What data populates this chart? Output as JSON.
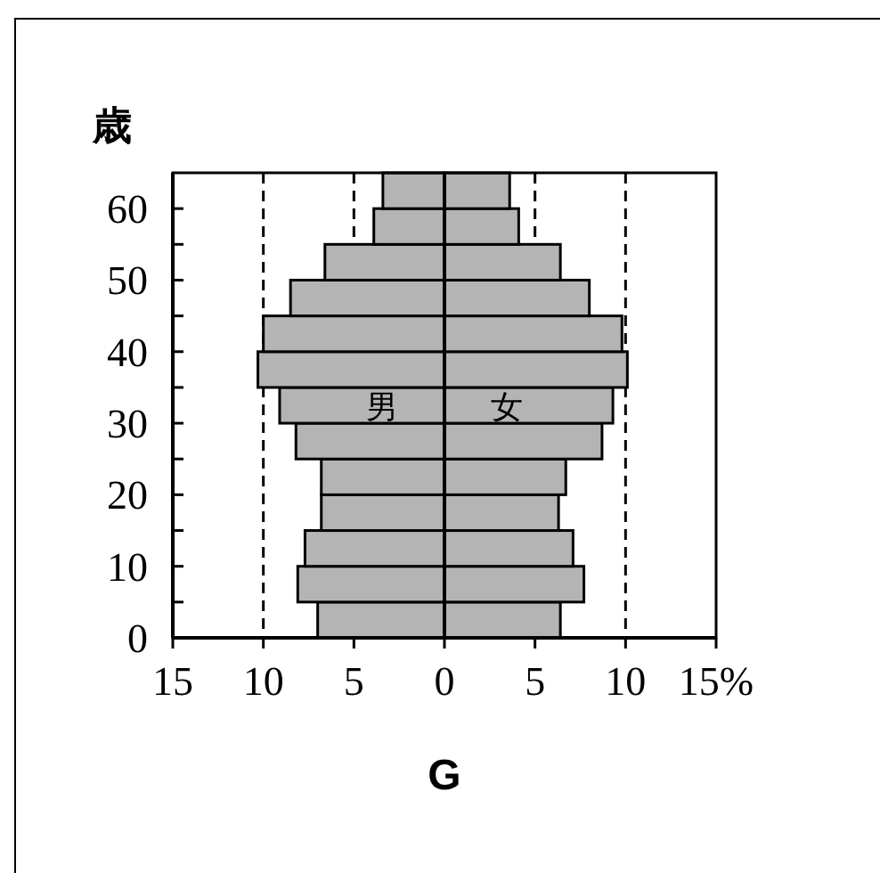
{
  "chart_data": {
    "type": "bar",
    "orientation": "horizontal",
    "ylabel": "歳",
    "xlabel": "G",
    "x": [
      2.5,
      7.5,
      12.5,
      17.5,
      22.5,
      27.5,
      32.5,
      37.5,
      42.5,
      47.5,
      52.5,
      57.5,
      62.5
    ],
    "series": [
      {
        "name": "男",
        "color": "#b4b4b4",
        "values": [
          -7.0,
          -8.1,
          -7.7,
          -6.8,
          -6.8,
          -8.2,
          -9.1,
          -10.3,
          -10.0,
          -8.5,
          -6.6,
          -3.9,
          -3.4
        ]
      },
      {
        "name": "女",
        "color": "#b4b4b4",
        "values": [
          6.4,
          7.7,
          7.1,
          6.3,
          6.7,
          8.7,
          9.3,
          10.1,
          9.8,
          8.0,
          6.4,
          4.1,
          3.6
        ]
      }
    ],
    "xlim": [
      -15,
      15
    ],
    "xticks": [
      {
        "value": -15,
        "label": "15"
      },
      {
        "value": -10,
        "label": "10"
      },
      {
        "value": -5,
        "label": "5"
      },
      0,
      5,
      10,
      {
        "value": 15,
        "label": "15%"
      }
    ],
    "ylim": [
      0,
      65
    ],
    "yticks": [
      0,
      {
        "value": 5,
        "label": null
      },
      10,
      {
        "value": 15,
        "label": null
      },
      20,
      {
        "value": 25,
        "label": null
      },
      30,
      {
        "value": 35,
        "label": null
      },
      40,
      {
        "value": 45,
        "label": null
      },
      50,
      {
        "value": 55,
        "label": null
      },
      60
    ],
    "ref_lines": [
      {
        "axis": "x",
        "value": -10,
        "line_style": "dashed"
      },
      {
        "axis": "x",
        "value": -5,
        "line_style": "dashed"
      },
      {
        "axis": "x",
        "value": 5,
        "line_style": "dashed"
      },
      {
        "axis": "x",
        "value": 10,
        "line_style": "dashed"
      },
      {
        "axis": "x",
        "value": 0,
        "line_style": "solid"
      }
    ],
    "stacked": true
  }
}
